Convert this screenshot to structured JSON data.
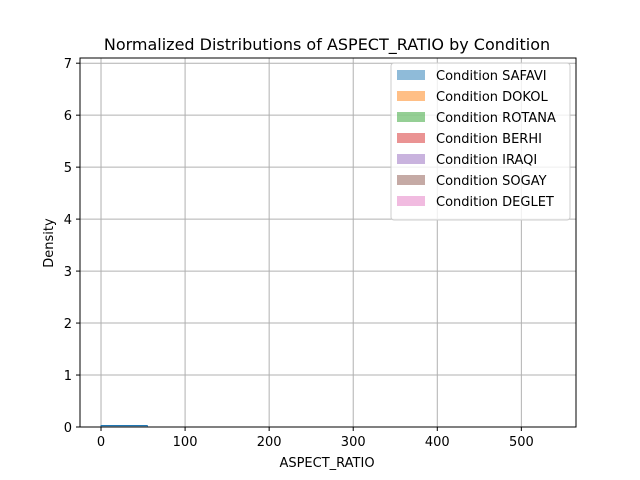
{
  "chart_data": {
    "type": "histogram",
    "title": "Normalized Distributions of ASPECT_RATIO by Condition",
    "xlabel": "ASPECT_RATIO",
    "ylabel": "Density",
    "xlim": [
      -25,
      565
    ],
    "ylim": [
      0,
      7.1
    ],
    "xticks": [
      0,
      100,
      200,
      300,
      400,
      500
    ],
    "yticks": [
      0,
      1,
      2,
      3,
      4,
      5,
      6,
      7
    ],
    "grid": true,
    "legend_position": "top-right",
    "series": [
      {
        "name": "Condition SAFAVI",
        "color": "#1f77b4",
        "bins": [
          [
            0,
            55,
            0.02
          ]
        ]
      },
      {
        "name": "Condition DOKOL",
        "color": "#ff7f0e",
        "bins": []
      },
      {
        "name": "Condition ROTANA",
        "color": "#2ca02c",
        "bins": []
      },
      {
        "name": "Condition BERHI",
        "color": "#d62728",
        "bins": []
      },
      {
        "name": "Condition IRAQI",
        "color": "#9467bd",
        "bins": []
      },
      {
        "name": "Condition SOGAY",
        "color": "#8c564b",
        "bins": []
      },
      {
        "name": "Condition DEGLET",
        "color": "#e377c2",
        "bins": []
      }
    ]
  }
}
